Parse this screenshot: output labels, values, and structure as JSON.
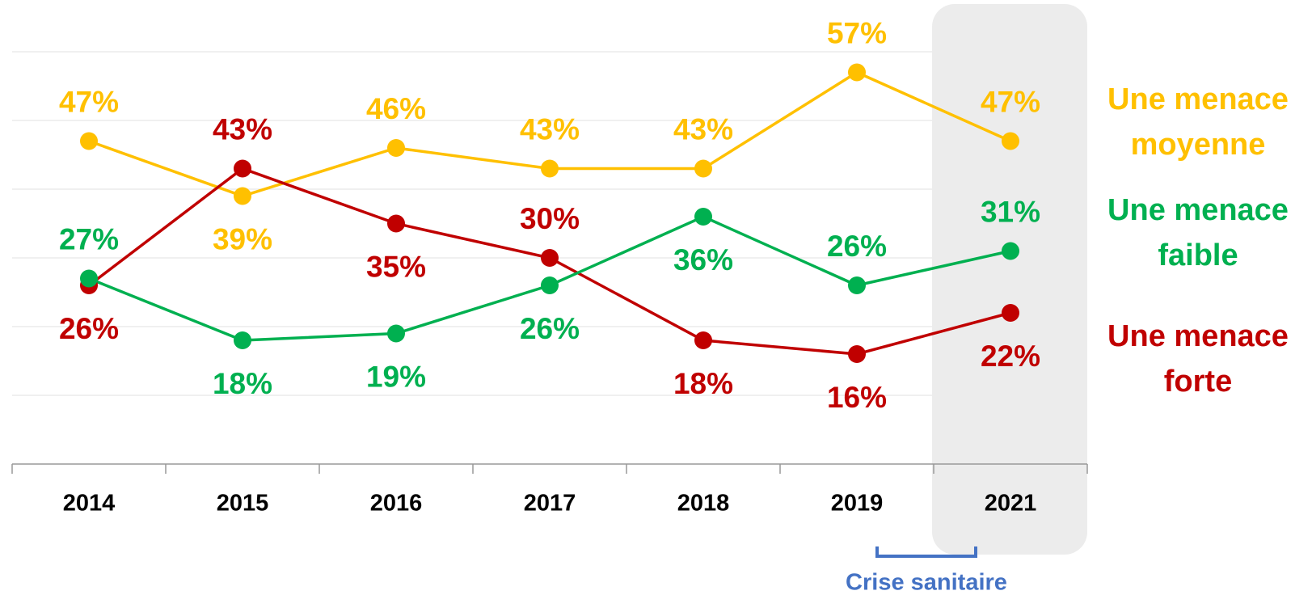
{
  "chart_data": {
    "type": "line",
    "categories": [
      "2014",
      "2015",
      "2016",
      "2017",
      "2018",
      "2019",
      "2021"
    ],
    "series": [
      {
        "name": "Une menace moyenne",
        "color": "#FFC000",
        "values": [
          47,
          39,
          46,
          43,
          43,
          57,
          47
        ],
        "value_labels": [
          "47%",
          "39%",
          "46%",
          "43%",
          "43%",
          "57%",
          "47%"
        ]
      },
      {
        "name": "Une menace faible",
        "color": "#00B050",
        "values": [
          27,
          18,
          19,
          26,
          36,
          26,
          31
        ],
        "value_labels": [
          "27%",
          "18%",
          "19%",
          "26%",
          "36%",
          "26%",
          "31%"
        ]
      },
      {
        "name": "Une menace forte",
        "color": "#C00000",
        "values": [
          26,
          43,
          35,
          30,
          18,
          16,
          22
        ],
        "value_labels": [
          "26%",
          "43%",
          "35%",
          "30%",
          "18%",
          "16%",
          "22%"
        ]
      }
    ],
    "ylim": [
      0,
      60
    ],
    "yticks": [
      0,
      10,
      20,
      30,
      40,
      50,
      60
    ],
    "grid": true,
    "annotation": "Crise sanitaire"
  }
}
